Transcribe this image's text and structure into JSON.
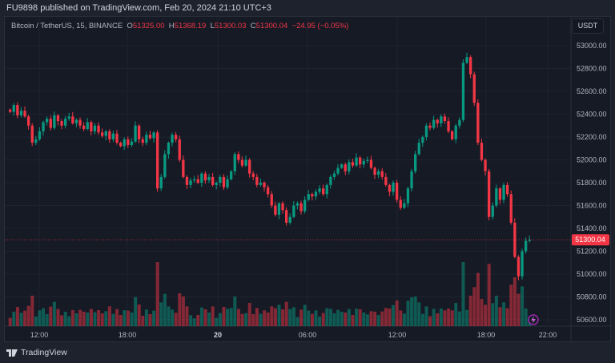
{
  "header": {
    "published": "FU9898 published on TradingView.com, Feb 20, 2024 21:10 UTC+3"
  },
  "legend": {
    "symbol": "Bitcoin / TetherUS, 15, BINANCE",
    "o_label": "O",
    "o": "51325.00",
    "h_label": "H",
    "h": "51368.19",
    "l_label": "L",
    "l": "51300.03",
    "c_label": "C",
    "c": "51300.04",
    "change": "−24.95 (−0.05%)"
  },
  "currency_button": "USDT",
  "footer": {
    "brand": "TradingView"
  },
  "colors": {
    "up": "#089981",
    "down": "#f23645",
    "bg": "#161a25"
  },
  "chart_data": {
    "type": "candlestick",
    "interval": "15",
    "current_price": "51300.04",
    "y_ticks": [
      "53000.00",
      "52800.00",
      "52600.00",
      "52400.00",
      "52200.00",
      "52000.00",
      "51800.00",
      "51600.00",
      "51400.00",
      "51200.00",
      "51000.00",
      "50800.00",
      "50600.00"
    ],
    "x_ticks": [
      "12:00",
      "18:00",
      "20",
      "06:00",
      "12:00",
      "18:00",
      "22:00"
    ],
    "ylim": [
      50600,
      53000
    ],
    "closes": [
      52420,
      52480,
      52390,
      52430,
      52380,
      52300,
      52150,
      52180,
      52250,
      52330,
      52360,
      52280,
      52390,
      52340,
      52300,
      52360,
      52380,
      52320,
      52350,
      52300,
      52270,
      52330,
      52250,
      52300,
      52240,
      52210,
      52250,
      52180,
      52230,
      52150,
      52120,
      52180,
      52130,
      52160,
      52300,
      52180,
      52150,
      52220,
      52190,
      52240,
      51750,
      51850,
      52050,
      52150,
      52220,
      52180,
      52000,
      51850,
      51780,
      51820,
      51830,
      51800,
      51880,
      51820,
      51850,
      51780,
      51800,
      51850,
      51760,
      51830,
      51900,
      52050,
      52000,
      51950,
      52000,
      51880,
      51850,
      51780,
      51800,
      51760,
      51700,
      51600,
      51520,
      51620,
      51560,
      51450,
      51500,
      51600,
      51620,
      51550,
      51650,
      51700,
      51680,
      51720,
      51750,
      51700,
      51780,
      51850,
      51880,
      51930,
      51960,
      51900,
      51980,
      51950,
      52020,
      51960,
      51990,
      52000,
      51930,
      51870,
      51900,
      51850,
      51780,
      51720,
      51800,
      51650,
      51580,
      51620,
      51750,
      51900,
      52050,
      52150,
      52200,
      52300,
      52280,
      52350,
      52320,
      52380,
      52340,
      52250,
      52180,
      52300,
      52350,
      52850,
      52900,
      52750,
      52500,
      52150,
      52000,
      51900,
      51500,
      51600,
      51750,
      51650,
      51780,
      51700,
      51450,
      51150,
      50980,
      51200,
      51290,
      51300
    ]
  }
}
